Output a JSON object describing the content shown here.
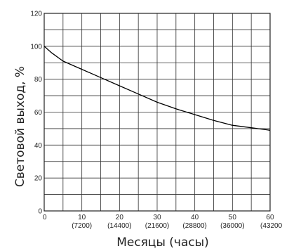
{
  "chart_data": {
    "type": "line",
    "xlabel": "Месяцы (часы)",
    "ylabel": "Световой выход, %",
    "xlim": [
      0,
      60
    ],
    "ylim": [
      0,
      120
    ],
    "grid": true,
    "x_ticks": [
      {
        "value": 0,
        "label": "0",
        "sub": ""
      },
      {
        "value": 10,
        "label": "10",
        "sub": "(7200)"
      },
      {
        "value": 20,
        "label": "20",
        "sub": "(14400)"
      },
      {
        "value": 30,
        "label": "30",
        "sub": "(21600)"
      },
      {
        "value": 40,
        "label": "40",
        "sub": "(28800)"
      },
      {
        "value": 50,
        "label": "50",
        "sub": "(36000)"
      },
      {
        "value": 60,
        "label": "60",
        "sub": "(43200)"
      }
    ],
    "y_ticks": [
      0,
      20,
      40,
      60,
      80,
      100,
      120
    ],
    "series": [
      {
        "x": [
          0,
          2,
          5,
          10,
          15,
          20,
          25,
          30,
          35,
          40,
          45,
          50,
          55,
          60
        ],
        "values": [
          100,
          96,
          91,
          86,
          81,
          76,
          71,
          66,
          62,
          58.5,
          55,
          52,
          50.5,
          49
        ],
        "color": "#000000"
      }
    ]
  }
}
